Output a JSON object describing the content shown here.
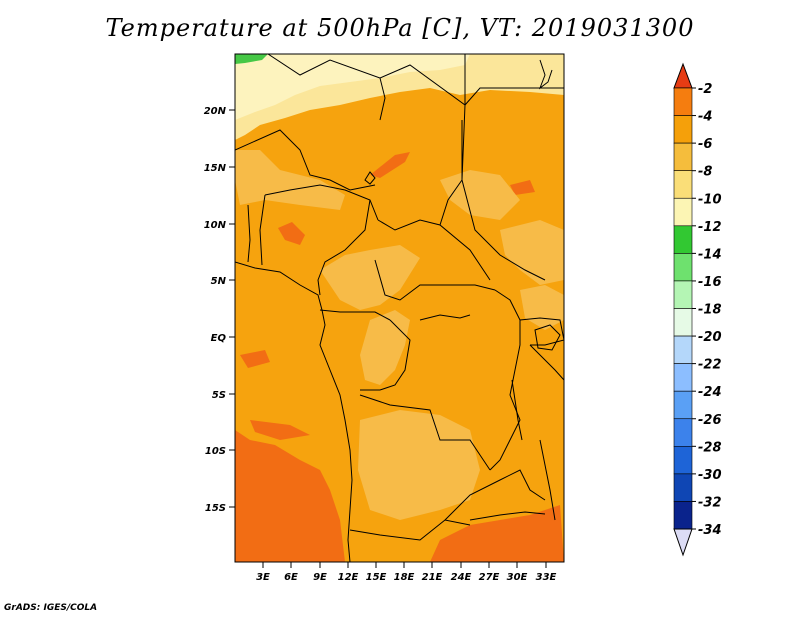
{
  "title": "Temperature at 500hPa [C], VT: 2019031300",
  "credit": "GrADS: IGES/COLA",
  "map": {
    "lat_labels": [
      "20N",
      "15N",
      "10N",
      "5N",
      "EQ",
      "5S",
      "10S",
      "15S"
    ],
    "lon_labels": [
      "3E",
      "6E",
      "9E",
      "12E",
      "15E",
      "18E",
      "21E",
      "24E",
      "27E",
      "30E",
      "33E"
    ]
  },
  "colorbar": {
    "labels": [
      "-2",
      "-4",
      "-6",
      "-8",
      "-10",
      "-12",
      "-14",
      "-16",
      "-18",
      "-20",
      "-22",
      "-24",
      "-26",
      "-28",
      "-30",
      "-32",
      "-34"
    ],
    "colors": [
      "#f05a14",
      "#f57d0f",
      "#f5a00a",
      "#f5bd3c",
      "#fade78",
      "#fcf5b4",
      "#32c832",
      "#6ee16e",
      "#b4f5b4",
      "#e6fae6",
      "#b4d7fa",
      "#8cbeff",
      "#5aa0f5",
      "#3c82eb",
      "#1e64d7",
      "#0f46b4",
      "#0a238c",
      "#000a64"
    ],
    "top_color": "#e63c14",
    "bottom_color": "#dcdcf5"
  },
  "colors": {
    "base_field": "#f6a30e",
    "warm_patch": "#f26d14",
    "cool_patch": "#f7bb48",
    "cold_band": "#fbe69a",
    "coldest_band": "#fdf3be",
    "green_corner": "#46c846"
  }
}
